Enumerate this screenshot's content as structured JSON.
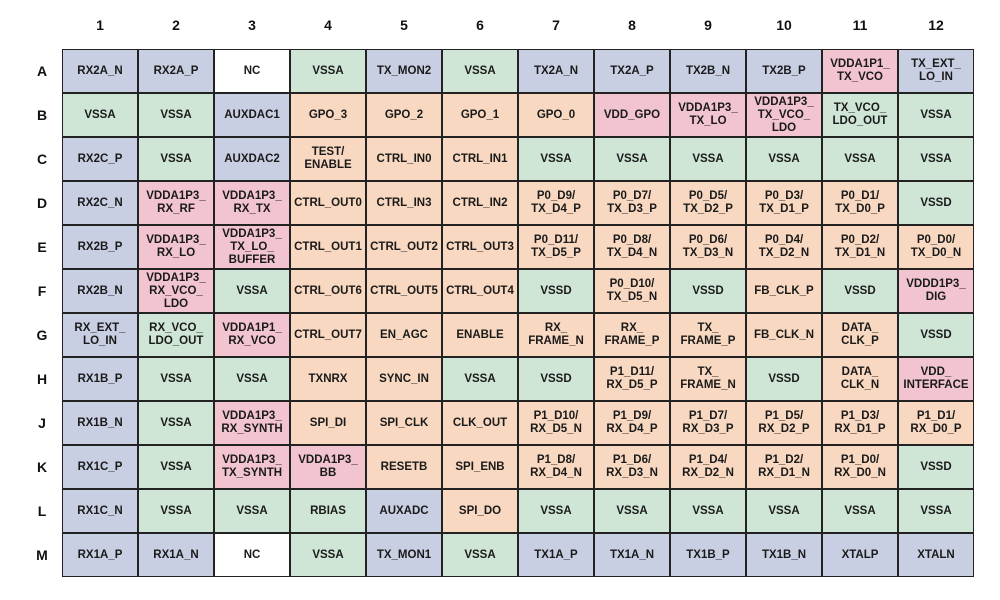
{
  "title": "",
  "columns": [
    "1",
    "2",
    "3",
    "4",
    "5",
    "6",
    "7",
    "8",
    "9",
    "10",
    "11",
    "12"
  ],
  "rows": [
    "A",
    "B",
    "C",
    "D",
    "E",
    "F",
    "G",
    "H",
    "J",
    "K",
    "L",
    "M"
  ],
  "color_key": {
    "ana": "#c9cfe3",
    "gnd": "#cfe6d7",
    "pwr": "#f2c4d0",
    "dig": "#f8d8c0",
    "nc": "#ffffff"
  },
  "cells": [
    [
      {
        "label": "RX2A_N",
        "type": "ana"
      },
      {
        "label": "RX2A_P",
        "type": "ana"
      },
      {
        "label": "NC",
        "type": "nc"
      },
      {
        "label": "VSSA",
        "type": "gnd"
      },
      {
        "label": "TX_MON2",
        "type": "ana"
      },
      {
        "label": "VSSA",
        "type": "gnd"
      },
      {
        "label": "TX2A_N",
        "type": "ana"
      },
      {
        "label": "TX2A_P",
        "type": "ana"
      },
      {
        "label": "TX2B_N",
        "type": "ana"
      },
      {
        "label": "TX2B_P",
        "type": "ana"
      },
      {
        "label": "VDDA1P1_\nTX_VCO",
        "type": "pwr"
      },
      {
        "label": "TX_EXT_\nLO_IN",
        "type": "ana"
      }
    ],
    [
      {
        "label": "VSSA",
        "type": "gnd"
      },
      {
        "label": "VSSA",
        "type": "gnd"
      },
      {
        "label": "AUXDAC1",
        "type": "ana"
      },
      {
        "label": "GPO_3",
        "type": "dig"
      },
      {
        "label": "GPO_2",
        "type": "dig"
      },
      {
        "label": "GPO_1",
        "type": "dig"
      },
      {
        "label": "GPO_0",
        "type": "dig"
      },
      {
        "label": "VDD_GPO",
        "type": "pwr"
      },
      {
        "label": "VDDA1P3_\nTX_LO",
        "type": "pwr"
      },
      {
        "label": "VDDA1P3_\nTX_VCO_\nLDO",
        "type": "pwr"
      },
      {
        "label": "TX_VCO_\nLDO_OUT",
        "type": "gnd"
      },
      {
        "label": "VSSA",
        "type": "gnd"
      }
    ],
    [
      {
        "label": "RX2C_P",
        "type": "ana"
      },
      {
        "label": "VSSA",
        "type": "gnd"
      },
      {
        "label": "AUXDAC2",
        "type": "ana"
      },
      {
        "label": "TEST/\nENABLE",
        "type": "dig"
      },
      {
        "label": "CTRL_IN0",
        "type": "dig"
      },
      {
        "label": "CTRL_IN1",
        "type": "dig"
      },
      {
        "label": "VSSA",
        "type": "gnd"
      },
      {
        "label": "VSSA",
        "type": "gnd"
      },
      {
        "label": "VSSA",
        "type": "gnd"
      },
      {
        "label": "VSSA",
        "type": "gnd"
      },
      {
        "label": "VSSA",
        "type": "gnd"
      },
      {
        "label": "VSSA",
        "type": "gnd"
      }
    ],
    [
      {
        "label": "RX2C_N",
        "type": "ana"
      },
      {
        "label": "VDDA1P3_\nRX_RF",
        "type": "pwr"
      },
      {
        "label": "VDDA1P3_\nRX_TX",
        "type": "pwr"
      },
      {
        "label": "CTRL_OUT0",
        "type": "dig"
      },
      {
        "label": "CTRL_IN3",
        "type": "dig"
      },
      {
        "label": "CTRL_IN2",
        "type": "dig"
      },
      {
        "label": "P0_D9/\nTX_D4_P",
        "type": "dig"
      },
      {
        "label": "P0_D7/\nTX_D3_P",
        "type": "dig"
      },
      {
        "label": "P0_D5/\nTX_D2_P",
        "type": "dig"
      },
      {
        "label": "P0_D3/\nTX_D1_P",
        "type": "dig"
      },
      {
        "label": "P0_D1/\nTX_D0_P",
        "type": "dig"
      },
      {
        "label": "VSSD",
        "type": "gnd"
      }
    ],
    [
      {
        "label": "RX2B_P",
        "type": "ana"
      },
      {
        "label": "VDDA1P3_\nRX_LO",
        "type": "pwr"
      },
      {
        "label": "VDDA1P3_\nTX_LO_\nBUFFER",
        "type": "pwr"
      },
      {
        "label": "CTRL_OUT1",
        "type": "dig"
      },
      {
        "label": "CTRL_OUT2",
        "type": "dig"
      },
      {
        "label": "CTRL_OUT3",
        "type": "dig"
      },
      {
        "label": "P0_D11/\nTX_D5_P",
        "type": "dig"
      },
      {
        "label": "P0_D8/\nTX_D4_N",
        "type": "dig"
      },
      {
        "label": "P0_D6/\nTX_D3_N",
        "type": "dig"
      },
      {
        "label": "P0_D4/\nTX_D2_N",
        "type": "dig"
      },
      {
        "label": "P0_D2/\nTX_D1_N",
        "type": "dig"
      },
      {
        "label": "P0_D0/\nTX_D0_N",
        "type": "dig"
      }
    ],
    [
      {
        "label": "RX2B_N",
        "type": "ana"
      },
      {
        "label": "VDDA1P3_\nRX_VCO_\nLDO",
        "type": "pwr"
      },
      {
        "label": "VSSA",
        "type": "gnd"
      },
      {
        "label": "CTRL_OUT6",
        "type": "dig"
      },
      {
        "label": "CTRL_OUT5",
        "type": "dig"
      },
      {
        "label": "CTRL_OUT4",
        "type": "dig"
      },
      {
        "label": "VSSD",
        "type": "gnd"
      },
      {
        "label": "P0_D10/\nTX_D5_N",
        "type": "dig"
      },
      {
        "label": "VSSD",
        "type": "gnd"
      },
      {
        "label": "FB_CLK_P",
        "type": "dig"
      },
      {
        "label": "VSSD",
        "type": "gnd"
      },
      {
        "label": "VDDD1P3_\nDIG",
        "type": "pwr"
      }
    ],
    [
      {
        "label": "RX_EXT_\nLO_IN",
        "type": "ana"
      },
      {
        "label": "RX_VCO_\nLDO_OUT",
        "type": "gnd"
      },
      {
        "label": "VDDA1P1_\nRX_VCO",
        "type": "pwr"
      },
      {
        "label": "CTRL_OUT7",
        "type": "dig"
      },
      {
        "label": "EN_AGC",
        "type": "dig"
      },
      {
        "label": "ENABLE",
        "type": "dig"
      },
      {
        "label": "RX_\nFRAME_N",
        "type": "dig"
      },
      {
        "label": "RX_\nFRAME_P",
        "type": "dig"
      },
      {
        "label": "TX_\nFRAME_P",
        "type": "dig"
      },
      {
        "label": "FB_CLK_N",
        "type": "dig"
      },
      {
        "label": "DATA_\nCLK_P",
        "type": "dig"
      },
      {
        "label": "VSSD",
        "type": "gnd"
      }
    ],
    [
      {
        "label": "RX1B_P",
        "type": "ana"
      },
      {
        "label": "VSSA",
        "type": "gnd"
      },
      {
        "label": "VSSA",
        "type": "gnd"
      },
      {
        "label": "TXNRX",
        "type": "dig"
      },
      {
        "label": "SYNC_IN",
        "type": "dig"
      },
      {
        "label": "VSSA",
        "type": "gnd"
      },
      {
        "label": "VSSD",
        "type": "gnd"
      },
      {
        "label": "P1_D11/\nRX_D5_P",
        "type": "dig"
      },
      {
        "label": "TX_\nFRAME_N",
        "type": "dig"
      },
      {
        "label": "VSSD",
        "type": "gnd"
      },
      {
        "label": "DATA_\nCLK_N",
        "type": "dig"
      },
      {
        "label": "VDD_\nINTERFACE",
        "type": "pwr"
      }
    ],
    [
      {
        "label": "RX1B_N",
        "type": "ana"
      },
      {
        "label": "VSSA",
        "type": "gnd"
      },
      {
        "label": "VDDA1P3_\nRX_SYNTH",
        "type": "pwr"
      },
      {
        "label": "SPI_DI",
        "type": "dig"
      },
      {
        "label": "SPI_CLK",
        "type": "dig"
      },
      {
        "label": "CLK_OUT",
        "type": "dig"
      },
      {
        "label": "P1_D10/\nRX_D5_N",
        "type": "dig"
      },
      {
        "label": "P1_D9/\nRX_D4_P",
        "type": "dig"
      },
      {
        "label": "P1_D7/\nRX_D3_P",
        "type": "dig"
      },
      {
        "label": "P1_D5/\nRX_D2_P",
        "type": "dig"
      },
      {
        "label": "P1_D3/\nRX_D1_P",
        "type": "dig"
      },
      {
        "label": "P1_D1/\nRX_D0_P",
        "type": "dig"
      }
    ],
    [
      {
        "label": "RX1C_P",
        "type": "ana"
      },
      {
        "label": "VSSA",
        "type": "gnd"
      },
      {
        "label": "VDDA1P3_\nTX_SYNTH",
        "type": "pwr"
      },
      {
        "label": "VDDA1P3_\nBB",
        "type": "pwr"
      },
      {
        "label": "RESETB",
        "type": "dig"
      },
      {
        "label": "SPI_ENB",
        "type": "dig"
      },
      {
        "label": "P1_D8/\nRX_D4_N",
        "type": "dig"
      },
      {
        "label": "P1_D6/\nRX_D3_N",
        "type": "dig"
      },
      {
        "label": "P1_D4/\nRX_D2_N",
        "type": "dig"
      },
      {
        "label": "P1_D2/\nRX_D1_N",
        "type": "dig"
      },
      {
        "label": "P1_D0/\nRX_D0_N",
        "type": "dig"
      },
      {
        "label": "VSSD",
        "type": "gnd"
      }
    ],
    [
      {
        "label": "RX1C_N",
        "type": "ana"
      },
      {
        "label": "VSSA",
        "type": "gnd"
      },
      {
        "label": "VSSA",
        "type": "gnd"
      },
      {
        "label": "RBIAS",
        "type": "gnd"
      },
      {
        "label": "AUXADC",
        "type": "ana"
      },
      {
        "label": "SPI_DO",
        "type": "dig"
      },
      {
        "label": "VSSA",
        "type": "gnd"
      },
      {
        "label": "VSSA",
        "type": "gnd"
      },
      {
        "label": "VSSA",
        "type": "gnd"
      },
      {
        "label": "VSSA",
        "type": "gnd"
      },
      {
        "label": "VSSA",
        "type": "gnd"
      },
      {
        "label": "VSSA",
        "type": "gnd"
      }
    ],
    [
      {
        "label": "RX1A_P",
        "type": "ana"
      },
      {
        "label": "RX1A_N",
        "type": "ana"
      },
      {
        "label": "NC",
        "type": "nc"
      },
      {
        "label": "VSSA",
        "type": "gnd"
      },
      {
        "label": "TX_MON1",
        "type": "ana"
      },
      {
        "label": "VSSA",
        "type": "gnd"
      },
      {
        "label": "TX1A_P",
        "type": "ana"
      },
      {
        "label": "TX1A_N",
        "type": "ana"
      },
      {
        "label": "TX1B_P",
        "type": "ana"
      },
      {
        "label": "TX1B_N",
        "type": "ana"
      },
      {
        "label": "XTALP",
        "type": "ana"
      },
      {
        "label": "XTALN",
        "type": "ana"
      }
    ]
  ]
}
